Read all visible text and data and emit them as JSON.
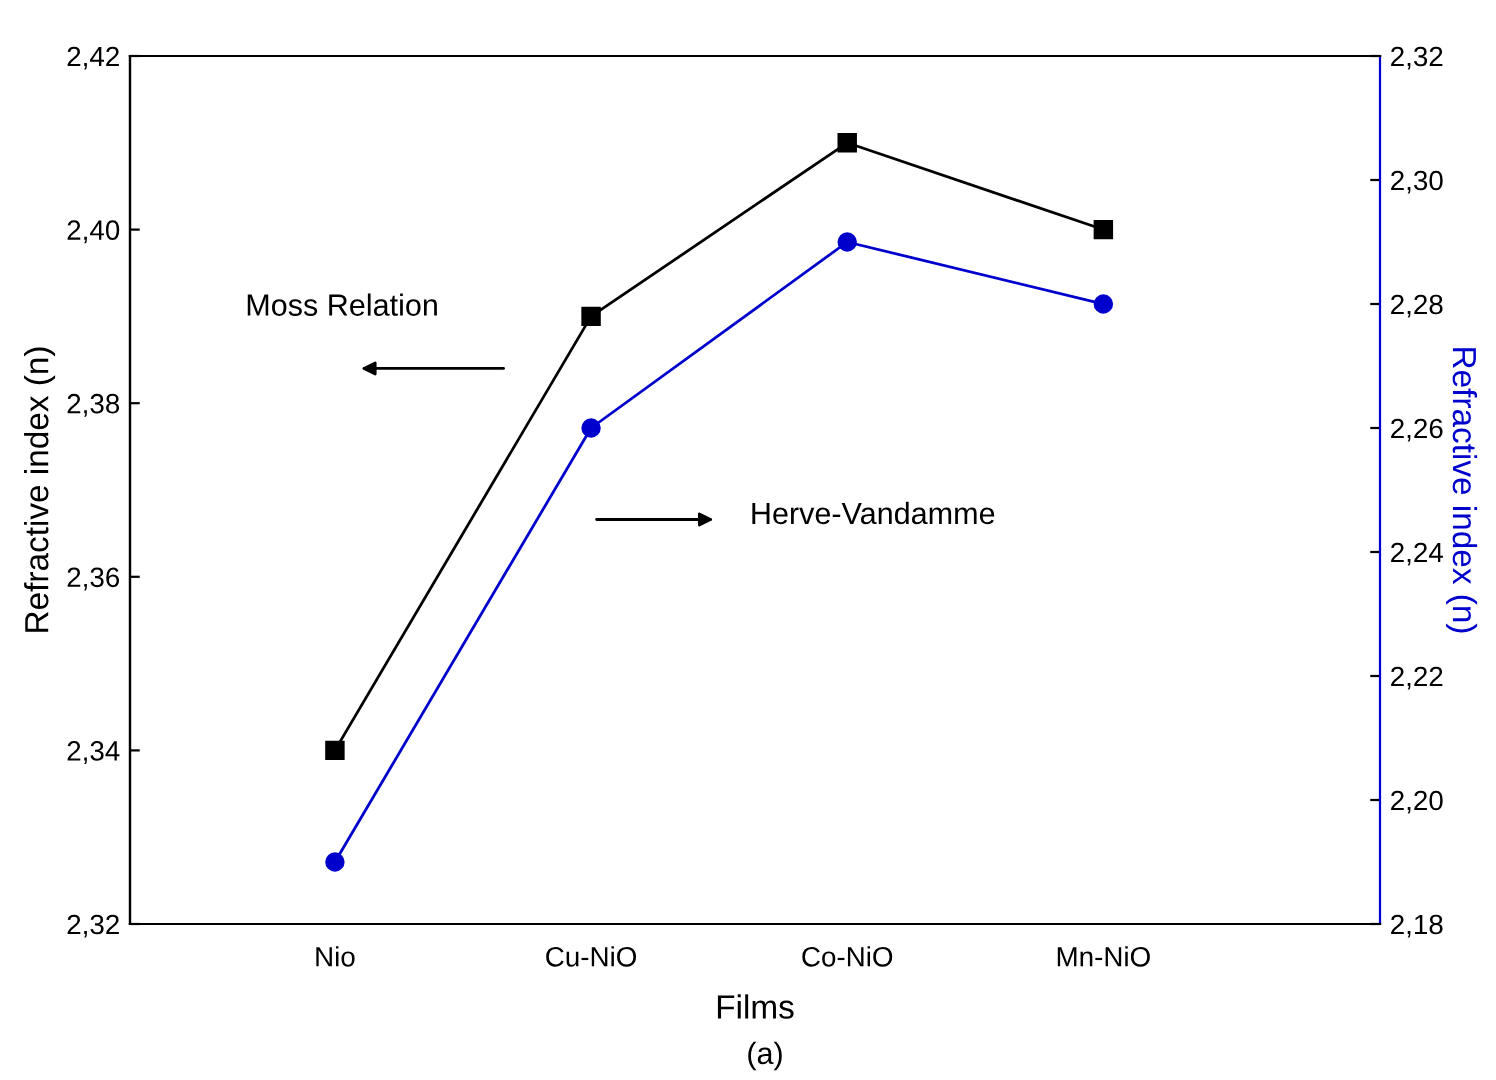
{
  "chart_data": {
    "type": "line",
    "xlabel": "Films",
    "ylabel": "Refractive index (n)",
    "y2label": "Refractive index (n)",
    "categories": [
      "Nio",
      "Cu-NiO",
      "Co-NiO",
      "Mn-NiO"
    ],
    "series": [
      {
        "color": "#000000",
        "marker": "square",
        "values": [
          2.34,
          2.39,
          2.41,
          2.4
        ]
      },
      {
        "color": "#0000cc",
        "marker": "circle",
        "axis": "y2",
        "values": [
          2.19,
          2.26,
          2.29,
          2.28
        ]
      }
    ],
    "ylim": [
      2.32,
      2.42
    ],
    "yticks": [
      {
        "value": 2.32,
        "label": "2,32"
      },
      {
        "value": 2.34,
        "label": "2,34"
      },
      {
        "value": 2.36,
        "label": "2,36"
      },
      {
        "value": 2.38,
        "label": "2,38"
      },
      {
        "value": 2.4,
        "label": "2,40"
      },
      {
        "value": 2.42,
        "label": "2,42"
      }
    ],
    "y2lim": [
      2.18,
      2.32
    ],
    "y2ticks": [
      {
        "value": 2.18,
        "label": "2,18"
      },
      {
        "value": 2.2,
        "label": "2,20"
      },
      {
        "value": 2.22,
        "label": "2,22"
      },
      {
        "value": 2.24,
        "label": "2,24"
      },
      {
        "value": 2.26,
        "label": "2,26"
      },
      {
        "value": 2.28,
        "label": "2,28"
      },
      {
        "value": 2.3,
        "label": "2,30"
      },
      {
        "value": 2.32,
        "label": "2,32"
      }
    ],
    "grid": false,
    "legend": false,
    "annotations": [
      "Moss Relation",
      "Herve-Vandamme",
      "(a)"
    ]
  }
}
